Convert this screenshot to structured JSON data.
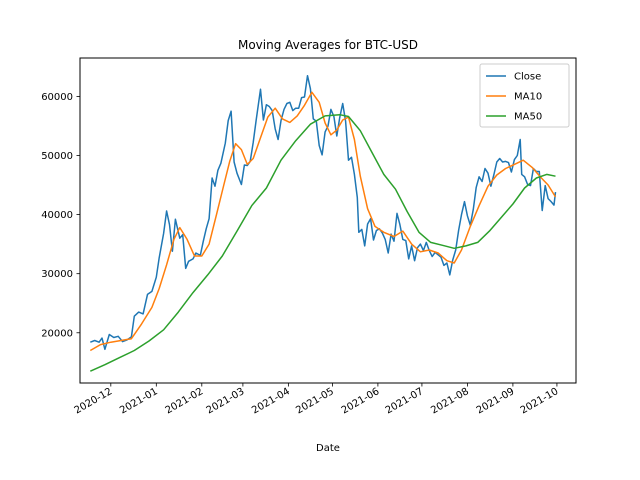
{
  "chart_data": {
    "type": "line",
    "title": "Moving Averages for BTC-USD",
    "xlabel": "Date",
    "ylabel": "",
    "x_range": [
      "2020-11-10",
      "2021-10-14"
    ],
    "ylim": [
      11500,
      66500
    ],
    "x_ticks": [
      {
        "date": "2020-12-01",
        "label": "2020-12"
      },
      {
        "date": "2021-01-01",
        "label": "2021-01"
      },
      {
        "date": "2021-02-01",
        "label": "2021-02"
      },
      {
        "date": "2021-03-01",
        "label": "2021-03"
      },
      {
        "date": "2021-04-01",
        "label": "2021-04"
      },
      {
        "date": "2021-05-01",
        "label": "2021-05"
      },
      {
        "date": "2021-06-01",
        "label": "2021-06"
      },
      {
        "date": "2021-07-01",
        "label": "2021-07"
      },
      {
        "date": "2021-08-01",
        "label": "2021-08"
      },
      {
        "date": "2021-09-01",
        "label": "2021-09"
      },
      {
        "date": "2021-10-01",
        "label": "2021-10"
      }
    ],
    "y_ticks": [
      20000,
      30000,
      40000,
      50000,
      60000
    ],
    "legend_position": "top-right",
    "grid": false,
    "series": [
      {
        "name": "Close",
        "color": "#1f77b4",
        "points": [
          [
            "2020-11-17",
            18400
          ],
          [
            "2020-11-20",
            18700
          ],
          [
            "2020-11-23",
            18400
          ],
          [
            "2020-11-25",
            19100
          ],
          [
            "2020-11-27",
            17200
          ],
          [
            "2020-11-30",
            19700
          ],
          [
            "2020-12-03",
            19200
          ],
          [
            "2020-12-06",
            19400
          ],
          [
            "2020-12-09",
            18500
          ],
          [
            "2020-12-12",
            18800
          ],
          [
            "2020-12-15",
            19300
          ],
          [
            "2020-12-17",
            22800
          ],
          [
            "2020-12-20",
            23500
          ],
          [
            "2020-12-23",
            23200
          ],
          [
            "2020-12-26",
            26500
          ],
          [
            "2020-12-29",
            27000
          ],
          [
            "2021-01-01",
            29400
          ],
          [
            "2021-01-03",
            32700
          ],
          [
            "2021-01-06",
            36800
          ],
          [
            "2021-01-08",
            40600
          ],
          [
            "2021-01-10",
            38300
          ],
          [
            "2021-01-12",
            33800
          ],
          [
            "2021-01-14",
            39200
          ],
          [
            "2021-01-17",
            36000
          ],
          [
            "2021-01-19",
            36600
          ],
          [
            "2021-01-21",
            30900
          ],
          [
            "2021-01-23",
            32100
          ],
          [
            "2021-01-26",
            32500
          ],
          [
            "2021-01-28",
            33500
          ],
          [
            "2021-01-31",
            33100
          ],
          [
            "2021-02-02",
            35500
          ],
          [
            "2021-02-04",
            37600
          ],
          [
            "2021-02-06",
            39300
          ],
          [
            "2021-02-08",
            46200
          ],
          [
            "2021-02-10",
            44800
          ],
          [
            "2021-02-12",
            47500
          ],
          [
            "2021-02-14",
            48700
          ],
          [
            "2021-02-17",
            52100
          ],
          [
            "2021-02-19",
            55900
          ],
          [
            "2021-02-21",
            57500
          ],
          [
            "2021-02-23",
            48900
          ],
          [
            "2021-02-25",
            47000
          ],
          [
            "2021-02-28",
            45100
          ],
          [
            "2021-03-02",
            48400
          ],
          [
            "2021-03-04",
            48300
          ],
          [
            "2021-03-06",
            49000
          ],
          [
            "2021-03-08",
            52200
          ],
          [
            "2021-03-10",
            55900
          ],
          [
            "2021-03-13",
            61200
          ],
          [
            "2021-03-15",
            56000
          ],
          [
            "2021-03-17",
            58600
          ],
          [
            "2021-03-19",
            58300
          ],
          [
            "2021-03-21",
            57600
          ],
          [
            "2021-03-23",
            54500
          ],
          [
            "2021-03-25",
            52700
          ],
          [
            "2021-03-27",
            55900
          ],
          [
            "2021-03-29",
            57800
          ],
          [
            "2021-03-31",
            58800
          ],
          [
            "2021-04-02",
            59000
          ],
          [
            "2021-04-04",
            57600
          ],
          [
            "2021-04-06",
            58000
          ],
          [
            "2021-04-08",
            58000
          ],
          [
            "2021-04-10",
            59800
          ],
          [
            "2021-04-12",
            59900
          ],
          [
            "2021-04-14",
            63500
          ],
          [
            "2021-04-16",
            61300
          ],
          [
            "2021-04-18",
            56200
          ],
          [
            "2021-04-20",
            55800
          ],
          [
            "2021-04-22",
            51700
          ],
          [
            "2021-04-24",
            50100
          ],
          [
            "2021-04-26",
            54000
          ],
          [
            "2021-04-28",
            55000
          ],
          [
            "2021-04-30",
            57800
          ],
          [
            "2021-05-02",
            56600
          ],
          [
            "2021-05-04",
            53300
          ],
          [
            "2021-05-06",
            56400
          ],
          [
            "2021-05-08",
            58800
          ],
          [
            "2021-05-10",
            55800
          ],
          [
            "2021-05-12",
            49200
          ],
          [
            "2021-05-14",
            49700
          ],
          [
            "2021-05-16",
            46800
          ],
          [
            "2021-05-18",
            42900
          ],
          [
            "2021-05-19",
            37000
          ],
          [
            "2021-05-21",
            37500
          ],
          [
            "2021-05-23",
            34700
          ],
          [
            "2021-05-25",
            38400
          ],
          [
            "2021-05-27",
            39300
          ],
          [
            "2021-05-29",
            35700
          ],
          [
            "2021-05-31",
            37300
          ],
          [
            "2021-06-02",
            37600
          ],
          [
            "2021-06-04",
            36900
          ],
          [
            "2021-06-06",
            35800
          ],
          [
            "2021-06-08",
            33500
          ],
          [
            "2021-06-10",
            36700
          ],
          [
            "2021-06-12",
            35500
          ],
          [
            "2021-06-14",
            40200
          ],
          [
            "2021-06-16",
            38300
          ],
          [
            "2021-06-18",
            35800
          ],
          [
            "2021-06-20",
            35600
          ],
          [
            "2021-06-22",
            32500
          ],
          [
            "2021-06-24",
            34700
          ],
          [
            "2021-06-26",
            32200
          ],
          [
            "2021-06-28",
            34400
          ],
          [
            "2021-06-30",
            35000
          ],
          [
            "2021-07-02",
            33900
          ],
          [
            "2021-07-04",
            35300
          ],
          [
            "2021-07-06",
            33900
          ],
          [
            "2021-07-08",
            32900
          ],
          [
            "2021-07-10",
            33600
          ],
          [
            "2021-07-12",
            33200
          ],
          [
            "2021-07-14",
            32800
          ],
          [
            "2021-07-16",
            31400
          ],
          [
            "2021-07-18",
            31800
          ],
          [
            "2021-07-20",
            29800
          ],
          [
            "2021-07-22",
            32300
          ],
          [
            "2021-07-24",
            34000
          ],
          [
            "2021-07-26",
            37300
          ],
          [
            "2021-07-28",
            40000
          ],
          [
            "2021-07-30",
            42200
          ],
          [
            "2021-08-01",
            39800
          ],
          [
            "2021-08-03",
            38200
          ],
          [
            "2021-08-05",
            40900
          ],
          [
            "2021-08-07",
            44600
          ],
          [
            "2021-08-09",
            46400
          ],
          [
            "2021-08-11",
            45600
          ],
          [
            "2021-08-13",
            47800
          ],
          [
            "2021-08-15",
            47000
          ],
          [
            "2021-08-17",
            44800
          ],
          [
            "2021-08-19",
            46700
          ],
          [
            "2021-08-21",
            48900
          ],
          [
            "2021-08-23",
            49500
          ],
          [
            "2021-08-25",
            48900
          ],
          [
            "2021-08-27",
            49000
          ],
          [
            "2021-08-29",
            48800
          ],
          [
            "2021-08-31",
            47200
          ],
          [
            "2021-09-02",
            49300
          ],
          [
            "2021-09-04",
            50000
          ],
          [
            "2021-09-06",
            52700
          ],
          [
            "2021-09-07",
            46800
          ],
          [
            "2021-09-09",
            46400
          ],
          [
            "2021-09-11",
            45100
          ],
          [
            "2021-09-13",
            44900
          ],
          [
            "2021-09-15",
            47800
          ],
          [
            "2021-09-17",
            47300
          ],
          [
            "2021-09-19",
            47300
          ],
          [
            "2021-09-21",
            40700
          ],
          [
            "2021-09-23",
            44900
          ],
          [
            "2021-09-25",
            42700
          ],
          [
            "2021-09-27",
            42200
          ],
          [
            "2021-09-29",
            41600
          ],
          [
            "2021-09-30",
            43800
          ]
        ]
      },
      {
        "name": "MA10",
        "color": "#ff7f0e",
        "points": [
          [
            "2020-11-17",
            17000
          ],
          [
            "2020-11-24",
            18000
          ],
          [
            "2020-12-01",
            18400
          ],
          [
            "2020-12-08",
            18700
          ],
          [
            "2020-12-15",
            19000
          ],
          [
            "2020-12-22",
            21500
          ],
          [
            "2020-12-29",
            24300
          ],
          [
            "2021-01-03",
            27500
          ],
          [
            "2021-01-08",
            31500
          ],
          [
            "2021-01-13",
            35800
          ],
          [
            "2021-01-17",
            37800
          ],
          [
            "2021-01-22",
            35800
          ],
          [
            "2021-01-27",
            33000
          ],
          [
            "2021-02-01",
            33000
          ],
          [
            "2021-02-06",
            35000
          ],
          [
            "2021-02-11",
            40000
          ],
          [
            "2021-02-16",
            45000
          ],
          [
            "2021-02-20",
            49000
          ],
          [
            "2021-02-24",
            52000
          ],
          [
            "2021-02-28",
            51000
          ],
          [
            "2021-03-04",
            48500
          ],
          [
            "2021-03-08",
            49500
          ],
          [
            "2021-03-13",
            53000
          ],
          [
            "2021-03-18",
            56500
          ],
          [
            "2021-03-23",
            58000
          ],
          [
            "2021-03-28",
            56200
          ],
          [
            "2021-04-02",
            55600
          ],
          [
            "2021-04-07",
            56700
          ],
          [
            "2021-04-12",
            58500
          ],
          [
            "2021-04-17",
            60700
          ],
          [
            "2021-04-22",
            59000
          ],
          [
            "2021-04-26",
            55500
          ],
          [
            "2021-04-30",
            53500
          ],
          [
            "2021-05-04",
            54300
          ],
          [
            "2021-05-08",
            56000
          ],
          [
            "2021-05-12",
            56500
          ],
          [
            "2021-05-16",
            52700
          ],
          [
            "2021-05-20",
            46500
          ],
          [
            "2021-05-25",
            41000
          ],
          [
            "2021-05-30",
            38000
          ],
          [
            "2021-06-05",
            37000
          ],
          [
            "2021-06-12",
            36300
          ],
          [
            "2021-06-18",
            37200
          ],
          [
            "2021-06-24",
            35000
          ],
          [
            "2021-06-30",
            33700
          ],
          [
            "2021-07-06",
            34000
          ],
          [
            "2021-07-12",
            33500
          ],
          [
            "2021-07-18",
            32200
          ],
          [
            "2021-07-23",
            31800
          ],
          [
            "2021-07-28",
            34000
          ],
          [
            "2021-08-03",
            38000
          ],
          [
            "2021-08-09",
            41500
          ],
          [
            "2021-08-15",
            44800
          ],
          [
            "2021-08-21",
            46700
          ],
          [
            "2021-08-27",
            47800
          ],
          [
            "2021-09-02",
            48500
          ],
          [
            "2021-09-08",
            49200
          ],
          [
            "2021-09-14",
            48000
          ],
          [
            "2021-09-20",
            46300
          ],
          [
            "2021-09-25",
            45000
          ],
          [
            "2021-09-30",
            43000
          ]
        ]
      },
      {
        "name": "MA50",
        "color": "#2ca02c",
        "points": [
          [
            "2020-11-17",
            13500
          ],
          [
            "2020-11-27",
            14600
          ],
          [
            "2020-12-07",
            15800
          ],
          [
            "2020-12-17",
            17000
          ],
          [
            "2020-12-27",
            18600
          ],
          [
            "2021-01-06",
            20500
          ],
          [
            "2021-01-16",
            23500
          ],
          [
            "2021-01-26",
            26800
          ],
          [
            "2021-02-05",
            29800
          ],
          [
            "2021-02-15",
            33000
          ],
          [
            "2021-02-25",
            37200
          ],
          [
            "2021-03-07",
            41500
          ],
          [
            "2021-03-17",
            44500
          ],
          [
            "2021-03-27",
            49200
          ],
          [
            "2021-04-06",
            52500
          ],
          [
            "2021-04-16",
            55300
          ],
          [
            "2021-04-26",
            56700
          ],
          [
            "2021-05-06",
            56900
          ],
          [
            "2021-05-12",
            56600
          ],
          [
            "2021-05-20",
            54200
          ],
          [
            "2021-05-28",
            50500
          ],
          [
            "2021-06-05",
            46800
          ],
          [
            "2021-06-13",
            44300
          ],
          [
            "2021-06-21",
            40500
          ],
          [
            "2021-06-29",
            37000
          ],
          [
            "2021-07-07",
            35300
          ],
          [
            "2021-07-15",
            34800
          ],
          [
            "2021-07-23",
            34300
          ],
          [
            "2021-07-31",
            34700
          ],
          [
            "2021-08-08",
            35300
          ],
          [
            "2021-08-16",
            37200
          ],
          [
            "2021-08-24",
            39500
          ],
          [
            "2021-09-01",
            41800
          ],
          [
            "2021-09-09",
            44500
          ],
          [
            "2021-09-17",
            46200
          ],
          [
            "2021-09-24",
            46800
          ],
          [
            "2021-09-30",
            46500
          ]
        ]
      }
    ]
  }
}
